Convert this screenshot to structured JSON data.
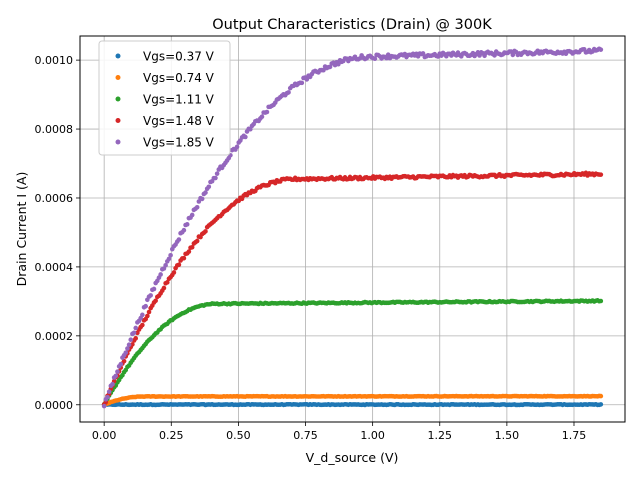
{
  "chart_data": {
    "type": "scatter",
    "title": "Output Characteristics (Drain) @ 300K",
    "xlabel": "V_d_source (V)",
    "ylabel": "Drain Current I (A)",
    "xlim": [
      -0.09,
      1.94
    ],
    "ylim": [
      -5e-05,
      0.00107
    ],
    "xticks": [
      0.0,
      0.25,
      0.5,
      0.75,
      1.0,
      1.25,
      1.5,
      1.75
    ],
    "xtick_labels": [
      "0.00",
      "0.25",
      "0.50",
      "0.75",
      "1.00",
      "1.25",
      "1.50",
      "1.75"
    ],
    "yticks": [
      0.0,
      0.0002,
      0.0004,
      0.0006,
      0.0008,
      0.001
    ],
    "ytick_labels": [
      "0.0000",
      "0.0002",
      "0.0004",
      "0.0006",
      "0.0008",
      "0.0010"
    ],
    "grid": true,
    "legend_position": "top-left",
    "x_start": 0.0,
    "x_end": 1.85,
    "points_per_series": 300,
    "series": [
      {
        "name": "Vgs=0.37 V",
        "color": "#1f77b4",
        "model": {
          "isat": 5e-07,
          "vsat": 0.03
        }
      },
      {
        "name": "Vgs=0.74 V",
        "color": "#ff7f0e",
        "model": {
          "isat": 2.4e-05,
          "vsat": 0.15
        }
      },
      {
        "name": "Vgs=1.11 V",
        "color": "#2ca02c",
        "model": {
          "isat": 0.000293,
          "vsat": 0.42
        }
      },
      {
        "name": "Vgs=1.48 V",
        "color": "#d62728",
        "model": {
          "isat": 0.000655,
          "vsat": 0.72
        }
      },
      {
        "name": "Vgs=1.85 V",
        "color": "#9467bd",
        "model": {
          "isat": 0.00101,
          "vsat": 1.0
        }
      }
    ]
  }
}
